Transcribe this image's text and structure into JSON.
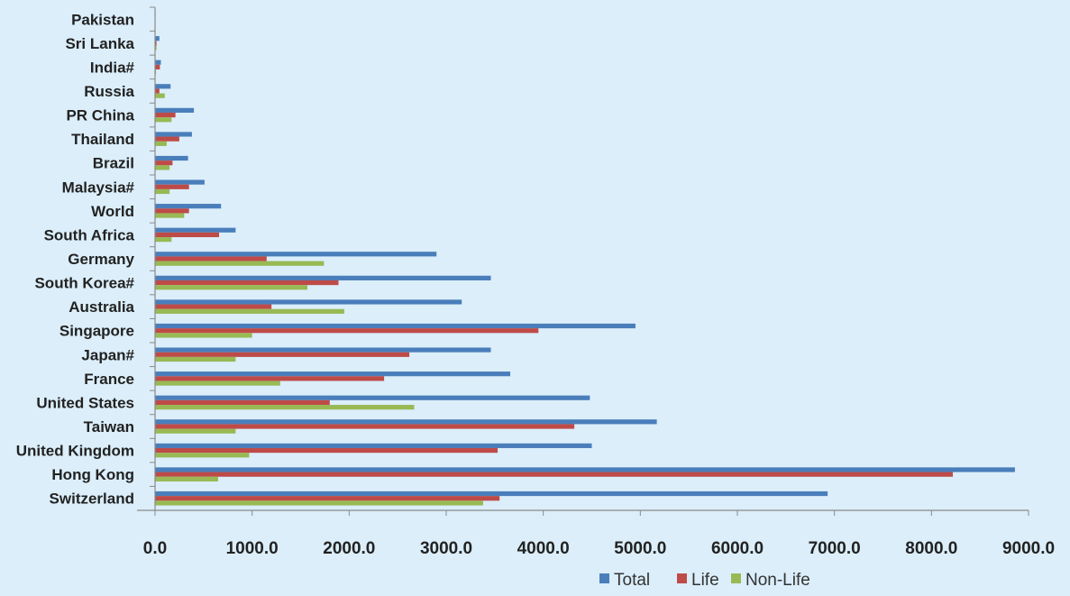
{
  "chart_data": {
    "type": "bar",
    "orientation": "horizontal",
    "categories": [
      "Pakistan",
      "Sri Lanka",
      "India#",
      "Russia",
      "PR China",
      "Thailand",
      "Brazil",
      "Malaysia#",
      "World",
      "South Africa",
      "Germany",
      "South Korea#",
      "Australia",
      "Singapore",
      "Japan#",
      "France",
      "United States",
      "Taiwan",
      "United Kingdom",
      "Hong Kong",
      "Switzerland"
    ],
    "series": [
      {
        "name": "Total",
        "color": "#4a7ebb",
        "values": [
          5,
          45,
          60,
          160,
          400,
          380,
          340,
          510,
          680,
          830,
          2900,
          3460,
          3160,
          4950,
          3460,
          3660,
          4480,
          5170,
          4500,
          8860,
          6930
        ]
      },
      {
        "name": "Life",
        "color": "#be4b48",
        "values": [
          2,
          15,
          50,
          45,
          210,
          250,
          180,
          350,
          350,
          660,
          1150,
          1890,
          1200,
          3950,
          2620,
          2360,
          1800,
          4320,
          3530,
          8220,
          3550
        ]
      },
      {
        "name": "Non-Life",
        "color": "#98b954",
        "values": [
          1,
          15,
          10,
          100,
          170,
          120,
          150,
          150,
          300,
          170,
          1740,
          1570,
          1950,
          1000,
          830,
          1290,
          2670,
          830,
          970,
          650,
          3380
        ]
      }
    ],
    "xlim": [
      0,
      9000
    ],
    "xticks": [
      "0.0",
      "1000.0",
      "2000.0",
      "3000.0",
      "4000.0",
      "5000.0",
      "6000.0",
      "7000.0",
      "8000.0",
      "9000.0"
    ],
    "title": "",
    "xlabel": "",
    "ylabel": "",
    "grid": false,
    "legend": "bottom-right"
  }
}
